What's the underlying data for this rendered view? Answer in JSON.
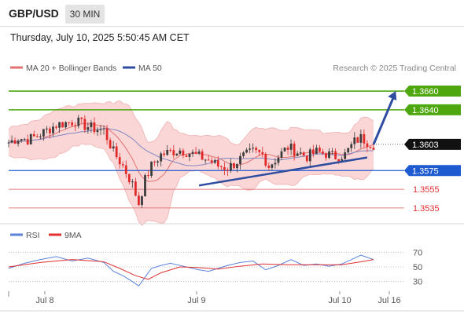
{
  "header": {
    "pair": "GBP/USD",
    "timeframe": "30 MIN",
    "datetime": "Thursday, July 10, 2025 5:50:45 AM CET"
  },
  "legend": {
    "ma20_bb": "MA 20 + Bollinger Bands",
    "ma50": "MA 50",
    "copyright": "Research © 2025 Trading Central",
    "rsi": "RSI",
    "rsi_ma": "9MA"
  },
  "colors": {
    "bull": "#3c3c3c",
    "bear": "#e02a2a",
    "resistance": "#4ea70f",
    "support_main": "#1f5bd0",
    "support_secondary": "#e08080",
    "trend": "#2f4da0",
    "bb_fill": "#f8c8c8",
    "ma20": "#e47272",
    "ma50": "#8088c0",
    "rsi": "#5a82d8",
    "rsi_ma": "#e03030"
  },
  "chart_data": [
    {
      "type": "candlestick",
      "title": "GBP/USD",
      "x_ticks": [
        "Jul 8",
        "Jul 9",
        "Jul 10",
        "Jul 16"
      ],
      "price_levels": [
        {
          "value": 1.366,
          "label": "1.3660",
          "kind": "resistance"
        },
        {
          "value": 1.364,
          "label": "1.3640",
          "kind": "resistance"
        },
        {
          "value": 1.3603,
          "label": "1.3603",
          "kind": "current"
        },
        {
          "value": 1.3575,
          "label": "1.3575",
          "kind": "support"
        },
        {
          "value": 1.3555,
          "label": "1.3555",
          "kind": "support"
        },
        {
          "value": 1.3535,
          "label": "1.3535",
          "kind": "support"
        }
      ],
      "current_price": 1.3603,
      "series": [
        {
          "name": "MA 20 + Bollinger Bands"
        },
        {
          "name": "MA 50"
        }
      ],
      "ylim": [
        1.3524,
        1.3676
      ],
      "close_path": [
        [
          0,
          1.3605
        ],
        [
          6,
          1.361
        ],
        [
          12,
          1.3608
        ],
        [
          18,
          1.3612
        ],
        [
          24,
          1.3618
        ],
        [
          30,
          1.3624
        ],
        [
          36,
          1.3626
        ],
        [
          42,
          1.3628
        ],
        [
          48,
          1.3623
        ],
        [
          54,
          1.362
        ],
        [
          60,
          1.3618
        ],
        [
          66,
          1.3595
        ],
        [
          72,
          1.358
        ],
        [
          78,
          1.356
        ],
        [
          82,
          1.354
        ],
        [
          86,
          1.3565
        ],
        [
          90,
          1.358
        ],
        [
          96,
          1.3592
        ],
        [
          102,
          1.3595
        ],
        [
          108,
          1.3597
        ],
        [
          114,
          1.3594
        ],
        [
          120,
          1.359
        ],
        [
          126,
          1.3586
        ],
        [
          132,
          1.358
        ],
        [
          138,
          1.3578
        ],
        [
          142,
          1.3582
        ],
        [
          148,
          1.359
        ],
        [
          154,
          1.3595
        ],
        [
          160,
          1.3592
        ],
        [
          164,
          1.358
        ],
        [
          170,
          1.359
        ],
        [
          176,
          1.36
        ],
        [
          182,
          1.3595
        ],
        [
          188,
          1.359
        ],
        [
          194,
          1.3595
        ],
        [
          200,
          1.3593
        ],
        [
          206,
          1.359
        ],
        [
          212,
          1.3592
        ],
        [
          218,
          1.3606
        ],
        [
          222,
          1.361
        ],
        [
          226,
          1.3606
        ],
        [
          230,
          1.3603
        ]
      ],
      "forecast_arrow": {
        "from": [
          230,
          1.3603
        ],
        "to": [
          244,
          1.366
        ]
      },
      "trendline": {
        "from": [
          120,
          1.3559
        ],
        "to": [
          226,
          1.3589
        ]
      }
    },
    {
      "type": "line",
      "title": "RSI",
      "series": [
        {
          "name": "RSI"
        },
        {
          "name": "9MA"
        }
      ],
      "y_ticks": [
        "70",
        "50",
        "30"
      ],
      "ylim": [
        20,
        80
      ],
      "rsi_path": [
        [
          0,
          48
        ],
        [
          10,
          55
        ],
        [
          20,
          60
        ],
        [
          30,
          64
        ],
        [
          40,
          58
        ],
        [
          50,
          62
        ],
        [
          60,
          56
        ],
        [
          66,
          44
        ],
        [
          72,
          38
        ],
        [
          78,
          30
        ],
        [
          82,
          24
        ],
        [
          86,
          36
        ],
        [
          90,
          48
        ],
        [
          96,
          52
        ],
        [
          102,
          55
        ],
        [
          110,
          51
        ],
        [
          120,
          46
        ],
        [
          126,
          44
        ],
        [
          132,
          48
        ],
        [
          138,
          52
        ],
        [
          146,
          56
        ],
        [
          154,
          58
        ],
        [
          162,
          46
        ],
        [
          170,
          52
        ],
        [
          178,
          60
        ],
        [
          186,
          52
        ],
        [
          194,
          54
        ],
        [
          202,
          51
        ],
        [
          210,
          54
        ],
        [
          218,
          62
        ],
        [
          222,
          66
        ],
        [
          226,
          63
        ],
        [
          230,
          60
        ]
      ],
      "rsi_ma_path": [
        [
          0,
          50
        ],
        [
          20,
          56
        ],
        [
          40,
          60
        ],
        [
          60,
          57
        ],
        [
          70,
          48
        ],
        [
          80,
          38
        ],
        [
          88,
          33
        ],
        [
          96,
          42
        ],
        [
          108,
          50
        ],
        [
          120,
          49
        ],
        [
          132,
          47
        ],
        [
          146,
          51
        ],
        [
          160,
          54
        ],
        [
          176,
          53
        ],
        [
          192,
          53
        ],
        [
          210,
          53
        ],
        [
          222,
          57
        ],
        [
          230,
          60
        ]
      ]
    }
  ]
}
